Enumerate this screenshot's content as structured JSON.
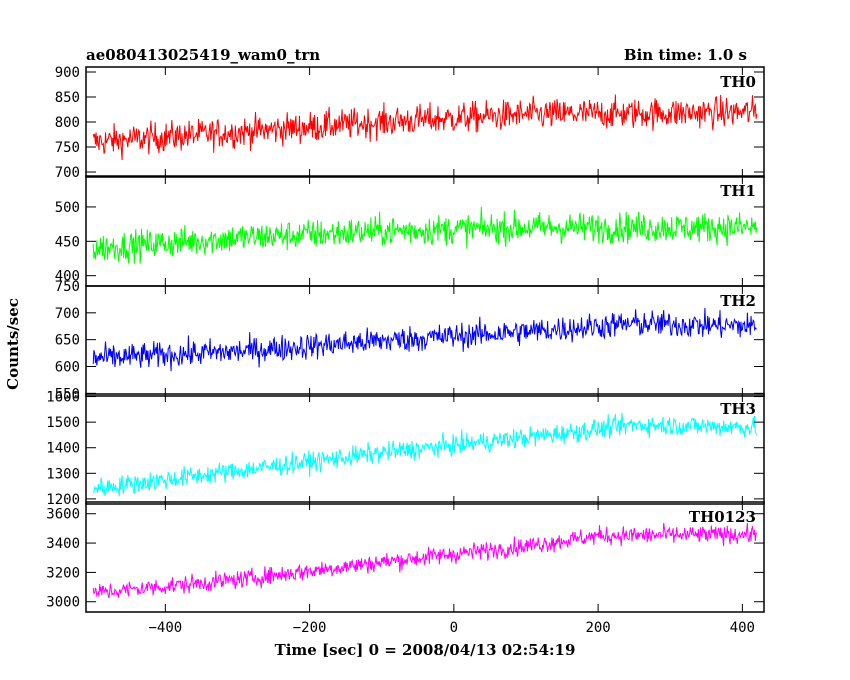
{
  "header": {
    "title": "ae080413025419_wam0_trn",
    "bin_time": "Bin time: 1.0 s"
  },
  "ylabel": "Counts/sec",
  "xlabel": "Time [sec] 0 = 2008/04/13 02:54:19",
  "colors": {
    "TH0": "#ff0000",
    "TH1": "#00ff00",
    "TH2": "#0000ff",
    "TH3": "#00ffff",
    "TH0123": "#ff00ff"
  },
  "chart_data": {
    "type": "line",
    "x_range": [
      -510,
      430
    ],
    "x_ticks": [
      -400,
      -200,
      0,
      200,
      400
    ],
    "x_tick_labels": [
      "−400",
      "−200",
      "0",
      "200",
      "400"
    ],
    "data_x_range": [
      -500,
      420
    ],
    "panels": [
      {
        "name": "TH0",
        "ylim": [
          690,
          910
        ],
        "y_ticks": [
          700,
          750,
          800,
          850,
          900
        ],
        "y_tick_labels": [
          "700",
          "750",
          "800",
          "850",
          "900"
        ],
        "trend": [
          [
            -500,
            760
          ],
          [
            -300,
            780
          ],
          [
            -100,
            800
          ],
          [
            100,
            815
          ],
          [
            420,
            820
          ]
        ],
        "noise": 35
      },
      {
        "name": "TH1",
        "ylim": [
          385,
          545
        ],
        "y_ticks": [
          400,
          450,
          500
        ],
        "y_tick_labels": [
          "400",
          "450",
          "500"
        ],
        "trend": [
          [
            -500,
            440
          ],
          [
            -300,
            455
          ],
          [
            -100,
            465
          ],
          [
            100,
            470
          ],
          [
            420,
            470
          ]
        ],
        "noise": 25
      },
      {
        "name": "TH2",
        "ylim": [
          545,
          750
        ],
        "y_ticks": [
          550,
          600,
          650,
          700,
          750
        ],
        "y_tick_labels": [
          "550",
          "600",
          "650",
          "700",
          "750"
        ],
        "trend": [
          [
            -500,
            615
          ],
          [
            -300,
            628
          ],
          [
            -100,
            648
          ],
          [
            100,
            665
          ],
          [
            250,
            680
          ],
          [
            420,
            675
          ]
        ],
        "noise": 28
      },
      {
        "name": "TH3",
        "ylim": [
          1180,
          1610
        ],
        "y_ticks": [
          1200,
          1300,
          1400,
          1500,
          1600
        ],
        "y_tick_labels": [
          "1200",
          "1300",
          "1400",
          "1500",
          "1600"
        ],
        "trend": [
          [
            -500,
            1240
          ],
          [
            -300,
            1310
          ],
          [
            -100,
            1380
          ],
          [
            100,
            1440
          ],
          [
            250,
            1490
          ],
          [
            420,
            1480
          ]
        ],
        "noise": 45
      },
      {
        "name": "TH0123",
        "ylim": [
          2930,
          3680
        ],
        "y_ticks": [
          3000,
          3200,
          3400,
          3600
        ],
        "y_tick_labels": [
          "3000",
          "3200",
          "3400",
          "3600"
        ],
        "trend": [
          [
            -500,
            3060
          ],
          [
            -300,
            3150
          ],
          [
            -100,
            3270
          ],
          [
            100,
            3380
          ],
          [
            200,
            3450
          ],
          [
            420,
            3460
          ]
        ],
        "noise": 70
      }
    ]
  }
}
